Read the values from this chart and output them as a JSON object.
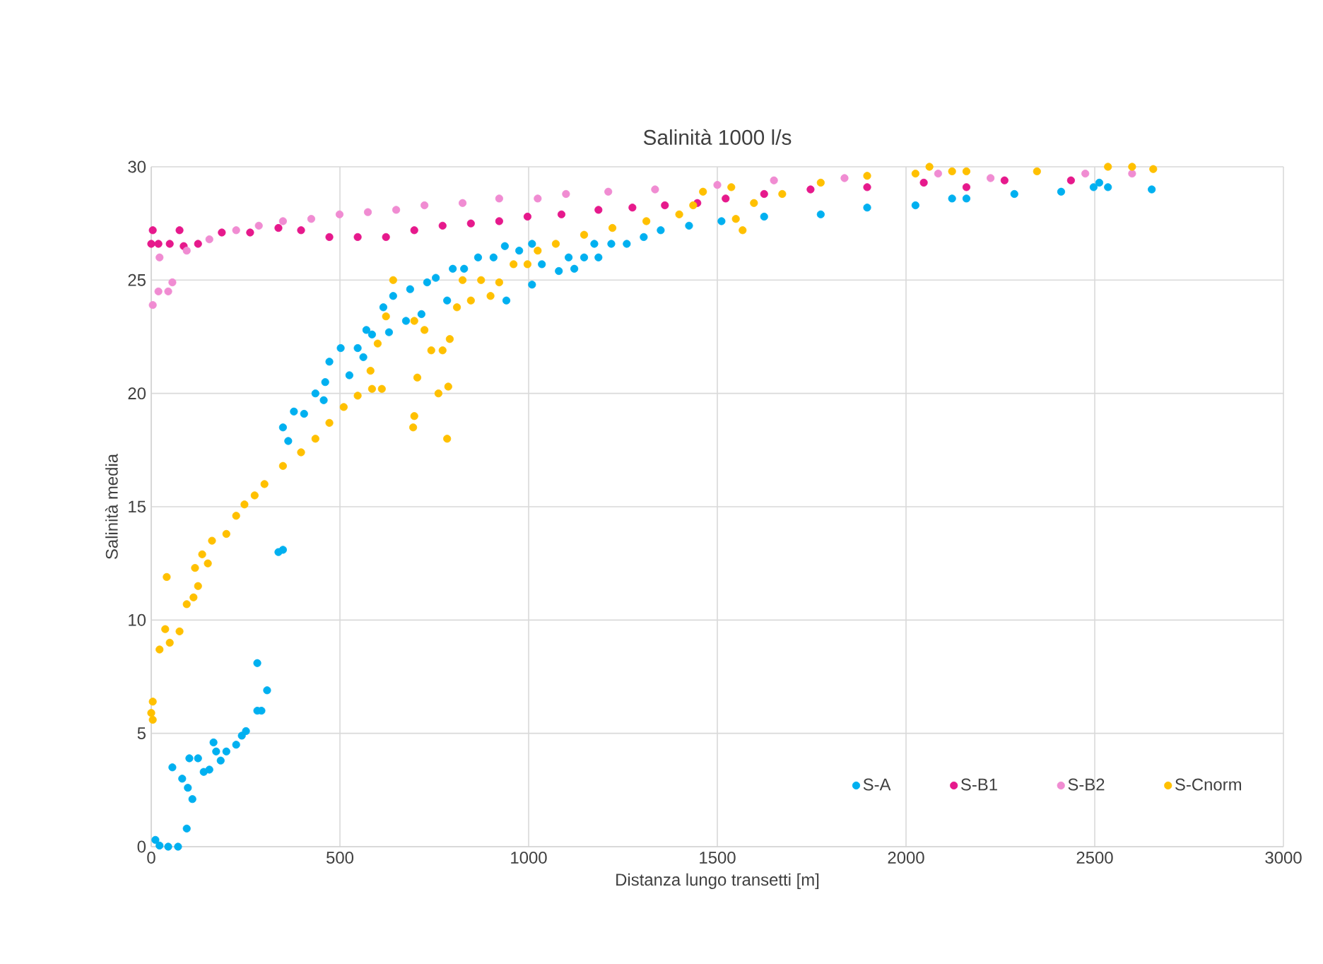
{
  "chart_data": {
    "type": "scatter",
    "title": "Salinità 1000 l/s",
    "xlabel": "Distanza lungo transetti [m]",
    "ylabel": "Salinità media",
    "xlim": [
      0,
      3000
    ],
    "xticks": [
      0,
      500,
      1000,
      1500,
      2000,
      2500,
      3000
    ],
    "ylim": [
      0,
      30
    ],
    "yticks": [
      0,
      5,
      10,
      15,
      20,
      25,
      30
    ],
    "grid": true,
    "legend": "bottom right",
    "marker": "circle",
    "series": [
      {
        "name": "S-A",
        "color": "#00b0f0",
        "x": [
          11,
          22,
          45,
          71,
          94,
          56,
          82,
          97,
          109,
          101,
          124,
          139,
          154,
          165,
          172,
          184,
          199,
          225,
          240,
          251,
          281,
          307,
          281,
          292,
          337,
          349,
          349,
          363,
          378,
          405,
          435,
          461,
          457,
          472,
          502,
          525,
          547,
          562,
          570,
          585,
          615,
          630,
          641,
          675,
          686,
          716,
          731,
          754,
          784,
          799,
          829,
          866,
          907,
          941,
          937,
          975,
          1009,
          1009,
          1035,
          1080,
          1121,
          1106,
          1147,
          1185,
          1174,
          1219,
          1260,
          1305,
          1350,
          1425,
          1511,
          1624,
          1774,
          1897,
          2025,
          2122,
          2160,
          2287,
          2411,
          2497,
          2512,
          2535,
          2651
        ],
        "values": [
          0.3,
          0.05,
          0,
          0,
          0.8,
          3.5,
          3,
          2.6,
          2.1,
          3.9,
          3.9,
          3.3,
          3.4,
          4.6,
          4.2,
          3.8,
          4.2,
          4.5,
          4.9,
          5.1,
          8.1,
          6.9,
          6,
          6,
          13,
          13.1,
          18.5,
          17.9,
          19.2,
          19.1,
          20,
          20.5,
          19.7,
          21.4,
          22,
          20.8,
          22,
          21.6,
          22.8,
          22.6,
          23.8,
          22.7,
          24.3,
          23.2,
          24.6,
          23.5,
          24.9,
          25.1,
          24.1,
          25.5,
          25.5,
          26,
          26,
          24.1,
          26.5,
          26.3,
          24.8,
          26.6,
          25.7,
          25.4,
          25.5,
          26,
          26,
          26,
          26.6,
          26.6,
          26.6,
          26.9,
          27.2,
          27.4,
          27.6,
          27.8,
          27.9,
          28.2,
          28.3,
          28.6,
          28.6,
          28.8,
          28.9,
          29.1,
          29.3,
          29.1,
          29
        ]
      },
      {
        "name": "S-B1",
        "color": "#e6198c",
        "x": [
          4,
          0,
          19,
          49,
          75,
          86,
          124,
          187,
          262,
          337,
          397,
          472,
          547,
          622,
          697,
          772,
          847,
          922,
          997,
          1087,
          1185,
          1275,
          1361,
          1447,
          1522,
          1624,
          1747,
          1897,
          2047,
          2160,
          2261,
          2437
        ],
        "values": [
          27.2,
          26.6,
          26.6,
          26.6,
          27.2,
          26.5,
          26.6,
          27.1,
          27.1,
          27.3,
          27.2,
          26.9,
          26.9,
          26.9,
          27.2,
          27.4,
          27.5,
          27.6,
          27.8,
          27.9,
          28.1,
          28.2,
          28.3,
          28.4,
          28.6,
          28.8,
          29,
          29.1,
          29.3,
          29.1,
          29.4,
          29.4
        ]
      },
      {
        "name": "S-B2",
        "color": "#f08cd2",
        "x": [
          4,
          19,
          45,
          56,
          22,
          94,
          154,
          225,
          285,
          349,
          424,
          499,
          574,
          649,
          724,
          825,
          922,
          1024,
          1099,
          1211,
          1335,
          1500,
          1650,
          1837,
          2085,
          2224,
          2475,
          2599
        ],
        "values": [
          23.9,
          24.5,
          24.5,
          24.9,
          26,
          26.3,
          26.8,
          27.2,
          27.4,
          27.6,
          27.7,
          27.9,
          28,
          28.1,
          28.3,
          28.4,
          28.6,
          28.6,
          28.8,
          28.9,
          29,
          29.2,
          29.4,
          29.5,
          29.7,
          29.5,
          29.7,
          29.7
        ]
      },
      {
        "name": "S-Cnorm",
        "color": "#ffc000",
        "x": [
          4,
          0,
          4,
          22,
          37,
          49,
          75,
          41,
          94,
          112,
          124,
          116,
          150,
          135,
          161,
          199,
          225,
          247,
          274,
          300,
          349,
          397,
          435,
          472,
          510,
          547,
          585,
          611,
          581,
          600,
          622,
          641,
          697,
          724,
          705,
          697,
          694,
          742,
          772,
          761,
          787,
          791,
          784,
          810,
          847,
          825,
          874,
          922,
          899,
          960,
          997,
          1024,
          1072,
          1147,
          1222,
          1312,
          1399,
          1436,
          1462,
          1537,
          1549,
          1567,
          1597,
          1672,
          1774,
          1897,
          2025,
          2062,
          2122,
          2160,
          2347,
          2535,
          2599,
          2655
        ],
        "values": [
          6.4,
          5.9,
          5.6,
          8.7,
          9.6,
          9,
          9.5,
          11.9,
          10.7,
          11,
          11.5,
          12.3,
          12.5,
          12.9,
          13.5,
          13.8,
          14.6,
          15.1,
          15.5,
          16,
          16.8,
          17.4,
          18,
          18.7,
          19.4,
          19.9,
          20.2,
          20.2,
          21,
          22.2,
          23.4,
          25,
          23.2,
          22.8,
          20.7,
          19,
          18.5,
          21.9,
          21.9,
          20,
          20.3,
          22.4,
          18,
          23.8,
          24.1,
          25,
          25,
          24.9,
          24.3,
          25.7,
          25.7,
          26.3,
          26.6,
          27,
          27.3,
          27.6,
          27.9,
          28.3,
          28.9,
          29.1,
          27.7,
          27.2,
          28.4,
          28.8,
          29.3,
          29.6,
          29.7,
          30,
          29.8,
          29.8,
          29.8,
          30,
          30,
          29.9
        ]
      }
    ]
  }
}
